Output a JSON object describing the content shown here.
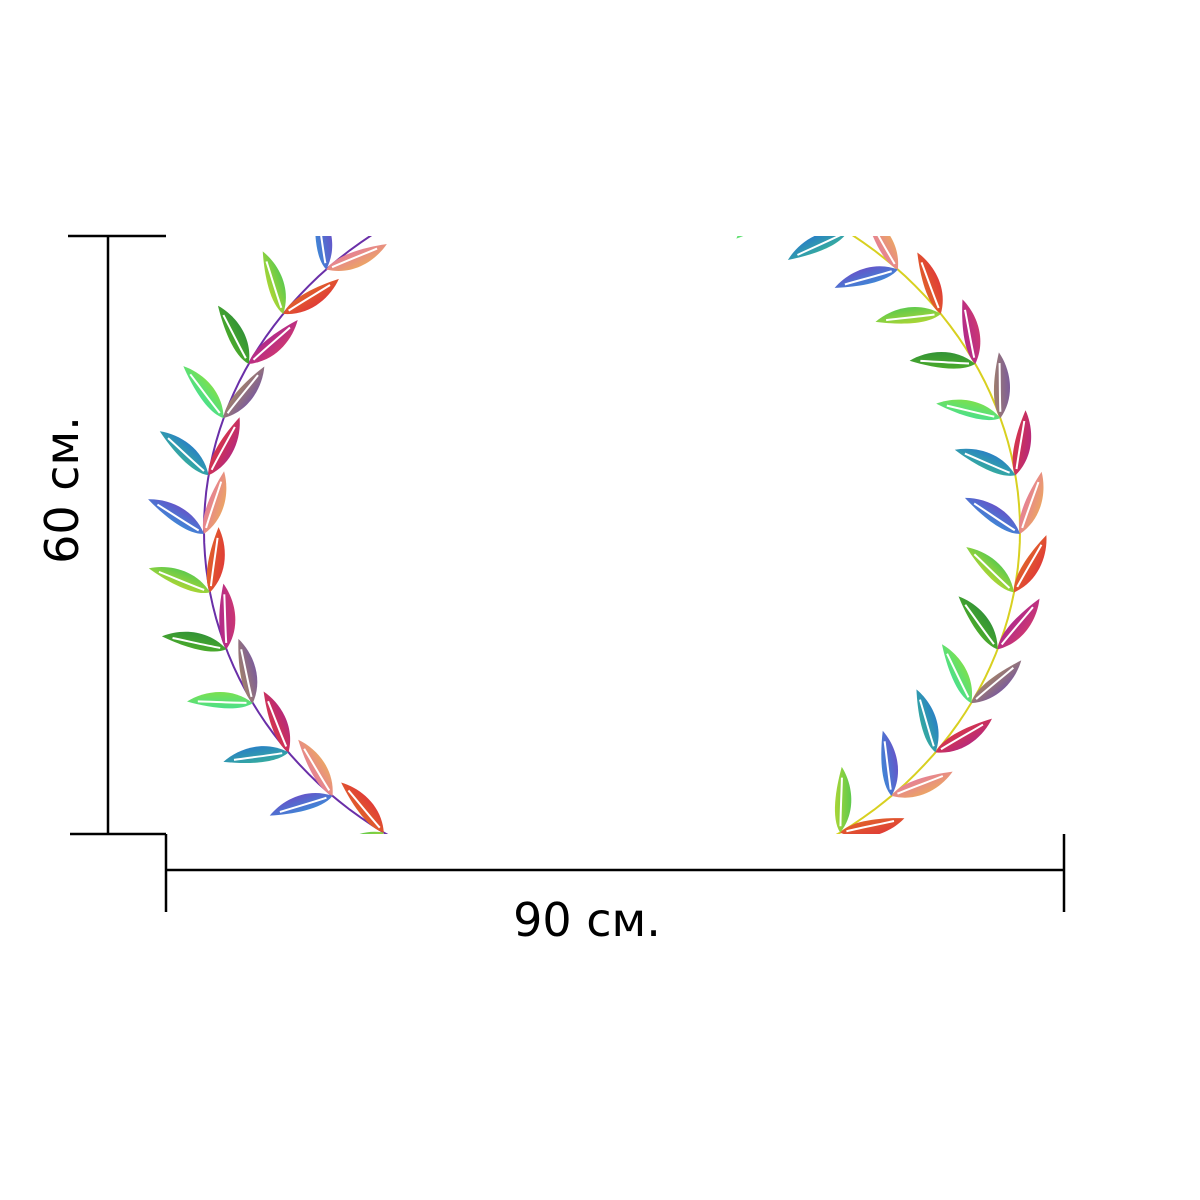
{
  "dimensions": {
    "height_label": "60 см.",
    "width_label": "90 см."
  },
  "wreath": {
    "left_stem_color": "#6a2fa8",
    "right_stem_color": "#d8d020",
    "leaf_palette": [
      [
        "#f0e020",
        "#20c060"
      ],
      [
        "#9a20a0",
        "#e04060"
      ],
      [
        "#20b0e0",
        "#8030c0"
      ],
      [
        "#e08020",
        "#e02040"
      ],
      [
        "#40d080",
        "#2060e0"
      ],
      [
        "#e060c0",
        "#f0c040"
      ],
      [
        "#20e0c0",
        "#a0e020"
      ],
      [
        "#f04020",
        "#a020a0"
      ],
      [
        "#60c020",
        "#208040"
      ],
      [
        "#c0a040",
        "#6040c0"
      ]
    ]
  }
}
